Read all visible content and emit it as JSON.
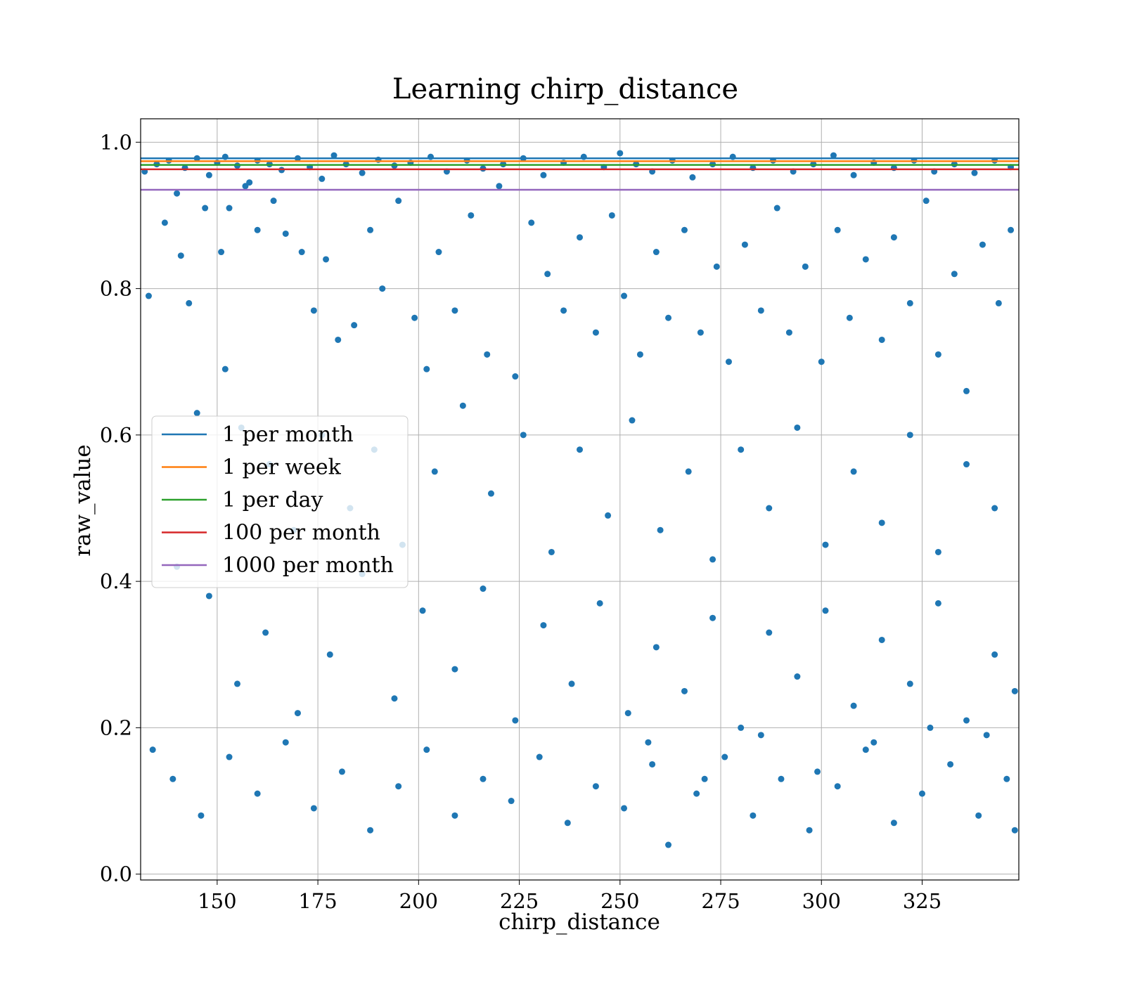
{
  "chart_data": {
    "type": "scatter",
    "title": "Learning chirp_distance",
    "xlabel": "chirp_distance",
    "ylabel": "raw_value",
    "xlim": [
      131,
      349
    ],
    "ylim": [
      -0.008,
      1.032
    ],
    "x_ticks": [
      150,
      175,
      200,
      225,
      250,
      275,
      300,
      325
    ],
    "y_ticks": [
      0.0,
      0.2,
      0.4,
      0.6,
      0.8,
      1.0
    ],
    "x_tick_labels": [
      "150",
      "175",
      "200",
      "225",
      "250",
      "275",
      "300",
      "325"
    ],
    "y_tick_labels": [
      "0.0",
      "0.2",
      "0.4",
      "0.6",
      "0.8",
      "1.0"
    ],
    "grid": true,
    "legend_position": "center-left",
    "point_color": "#1f77b4",
    "threshold_lines": [
      {
        "name": "1 per month",
        "y": 0.978,
        "color": "#1f77b4"
      },
      {
        "name": "1 per week",
        "y": 0.974,
        "color": "#ff7f0e"
      },
      {
        "name": "1 per day",
        "y": 0.969,
        "color": "#2ca02c"
      },
      {
        "name": "100 per month",
        "y": 0.963,
        "color": "#d62728"
      },
      {
        "name": "1000 per month",
        "y": 0.935,
        "color": "#9467bd"
      }
    ],
    "points": [
      [
        132,
        0.96
      ],
      [
        135,
        0.97
      ],
      [
        138,
        0.975
      ],
      [
        140,
        0.93
      ],
      [
        142,
        0.965
      ],
      [
        145,
        0.978
      ],
      [
        148,
        0.955
      ],
      [
        150,
        0.972
      ],
      [
        152,
        0.98
      ],
      [
        155,
        0.968
      ],
      [
        158,
        0.945
      ],
      [
        160,
        0.975
      ],
      [
        163,
        0.97
      ],
      [
        166,
        0.962
      ],
      [
        170,
        0.978
      ],
      [
        173,
        0.966
      ],
      [
        176,
        0.95
      ],
      [
        179,
        0.982
      ],
      [
        182,
        0.97
      ],
      [
        186,
        0.958
      ],
      [
        190,
        0.976
      ],
      [
        194,
        0.968
      ],
      [
        198,
        0.972
      ],
      [
        203,
        0.98
      ],
      [
        207,
        0.96
      ],
      [
        212,
        0.975
      ],
      [
        216,
        0.964
      ],
      [
        221,
        0.97
      ],
      [
        226,
        0.978
      ],
      [
        231,
        0.955
      ],
      [
        236,
        0.972
      ],
      [
        241,
        0.98
      ],
      [
        246,
        0.966
      ],
      [
        250,
        0.985
      ],
      [
        254,
        0.97
      ],
      [
        258,
        0.96
      ],
      [
        263,
        0.975
      ],
      [
        268,
        0.952
      ],
      [
        273,
        0.97
      ],
      [
        278,
        0.98
      ],
      [
        283,
        0.965
      ],
      [
        288,
        0.975
      ],
      [
        293,
        0.96
      ],
      [
        298,
        0.97
      ],
      [
        303,
        0.982
      ],
      [
        308,
        0.955
      ],
      [
        313,
        0.972
      ],
      [
        318,
        0.965
      ],
      [
        323,
        0.975
      ],
      [
        328,
        0.96
      ],
      [
        333,
        0.97
      ],
      [
        338,
        0.958
      ],
      [
        343,
        0.975
      ],
      [
        347,
        0.966
      ],
      [
        133,
        0.79
      ],
      [
        137,
        0.89
      ],
      [
        141,
        0.845
      ],
      [
        143,
        0.78
      ],
      [
        147,
        0.91
      ],
      [
        151,
        0.85
      ],
      [
        153,
        0.91
      ],
      [
        157,
        0.94
      ],
      [
        160,
        0.88
      ],
      [
        164,
        0.92
      ],
      [
        167,
        0.875
      ],
      [
        171,
        0.85
      ],
      [
        174,
        0.77
      ],
      [
        177,
        0.84
      ],
      [
        180,
        0.73
      ],
      [
        184,
        0.75
      ],
      [
        188,
        0.88
      ],
      [
        191,
        0.8
      ],
      [
        195,
        0.92
      ],
      [
        199,
        0.76
      ],
      [
        202,
        0.69
      ],
      [
        205,
        0.85
      ],
      [
        209,
        0.77
      ],
      [
        213,
        0.9
      ],
      [
        217,
        0.71
      ],
      [
        220,
        0.94
      ],
      [
        224,
        0.68
      ],
      [
        228,
        0.89
      ],
      [
        232,
        0.82
      ],
      [
        236,
        0.77
      ],
      [
        240,
        0.87
      ],
      [
        244,
        0.74
      ],
      [
        248,
        0.9
      ],
      [
        251,
        0.79
      ],
      [
        255,
        0.71
      ],
      [
        259,
        0.85
      ],
      [
        262,
        0.76
      ],
      [
        266,
        0.88
      ],
      [
        270,
        0.74
      ],
      [
        274,
        0.83
      ],
      [
        277,
        0.7
      ],
      [
        281,
        0.86
      ],
      [
        285,
        0.77
      ],
      [
        289,
        0.91
      ],
      [
        292,
        0.74
      ],
      [
        296,
        0.83
      ],
      [
        300,
        0.7
      ],
      [
        304,
        0.88
      ],
      [
        307,
        0.76
      ],
      [
        311,
        0.84
      ],
      [
        315,
        0.73
      ],
      [
        318,
        0.87
      ],
      [
        322,
        0.78
      ],
      [
        326,
        0.92
      ],
      [
        329,
        0.71
      ],
      [
        333,
        0.82
      ],
      [
        336,
        0.66
      ],
      [
        340,
        0.86
      ],
      [
        344,
        0.78
      ],
      [
        347,
        0.88
      ],
      [
        145,
        0.63
      ],
      [
        152,
        0.69
      ],
      [
        156,
        0.61
      ],
      [
        163,
        0.56
      ],
      [
        169,
        0.47
      ],
      [
        176,
        0.6
      ],
      [
        183,
        0.5
      ],
      [
        189,
        0.58
      ],
      [
        196,
        0.45
      ],
      [
        204,
        0.55
      ],
      [
        211,
        0.64
      ],
      [
        218,
        0.52
      ],
      [
        226,
        0.6
      ],
      [
        233,
        0.44
      ],
      [
        240,
        0.58
      ],
      [
        247,
        0.49
      ],
      [
        253,
        0.62
      ],
      [
        260,
        0.47
      ],
      [
        267,
        0.55
      ],
      [
        273,
        0.43
      ],
      [
        280,
        0.58
      ],
      [
        287,
        0.5
      ],
      [
        294,
        0.61
      ],
      [
        301,
        0.45
      ],
      [
        308,
        0.55
      ],
      [
        315,
        0.48
      ],
      [
        322,
        0.6
      ],
      [
        329,
        0.44
      ],
      [
        336,
        0.56
      ],
      [
        343,
        0.5
      ],
      [
        140,
        0.42
      ],
      [
        148,
        0.38
      ],
      [
        155,
        0.26
      ],
      [
        162,
        0.33
      ],
      [
        170,
        0.22
      ],
      [
        178,
        0.3
      ],
      [
        186,
        0.41
      ],
      [
        194,
        0.24
      ],
      [
        201,
        0.36
      ],
      [
        209,
        0.28
      ],
      [
        216,
        0.39
      ],
      [
        224,
        0.21
      ],
      [
        231,
        0.34
      ],
      [
        238,
        0.26
      ],
      [
        245,
        0.37
      ],
      [
        252,
        0.22
      ],
      [
        259,
        0.31
      ],
      [
        266,
        0.25
      ],
      [
        273,
        0.35
      ],
      [
        280,
        0.2
      ],
      [
        287,
        0.33
      ],
      [
        294,
        0.27
      ],
      [
        301,
        0.36
      ],
      [
        308,
        0.23
      ],
      [
        315,
        0.32
      ],
      [
        322,
        0.26
      ],
      [
        329,
        0.37
      ],
      [
        336,
        0.21
      ],
      [
        343,
        0.3
      ],
      [
        348,
        0.25
      ],
      [
        134,
        0.17
      ],
      [
        139,
        0.13
      ],
      [
        146,
        0.08
      ],
      [
        153,
        0.16
      ],
      [
        160,
        0.11
      ],
      [
        167,
        0.18
      ],
      [
        174,
        0.09
      ],
      [
        181,
        0.14
      ],
      [
        188,
        0.06
      ],
      [
        195,
        0.12
      ],
      [
        202,
        0.17
      ],
      [
        209,
        0.08
      ],
      [
        216,
        0.13
      ],
      [
        223,
        0.1
      ],
      [
        230,
        0.16
      ],
      [
        237,
        0.07
      ],
      [
        244,
        0.12
      ],
      [
        251,
        0.09
      ],
      [
        258,
        0.15
      ],
      [
        262,
        0.04
      ],
      [
        269,
        0.11
      ],
      [
        276,
        0.16
      ],
      [
        283,
        0.08
      ],
      [
        290,
        0.13
      ],
      [
        297,
        0.06
      ],
      [
        304,
        0.12
      ],
      [
        311,
        0.17
      ],
      [
        318,
        0.07
      ],
      [
        325,
        0.11
      ],
      [
        332,
        0.15
      ],
      [
        339,
        0.08
      ],
      [
        346,
        0.13
      ],
      [
        348,
        0.06
      ],
      [
        341,
        0.19
      ],
      [
        327,
        0.2
      ],
      [
        313,
        0.18
      ],
      [
        299,
        0.14
      ],
      [
        285,
        0.19
      ],
      [
        271,
        0.13
      ],
      [
        257,
        0.18
      ]
    ]
  }
}
